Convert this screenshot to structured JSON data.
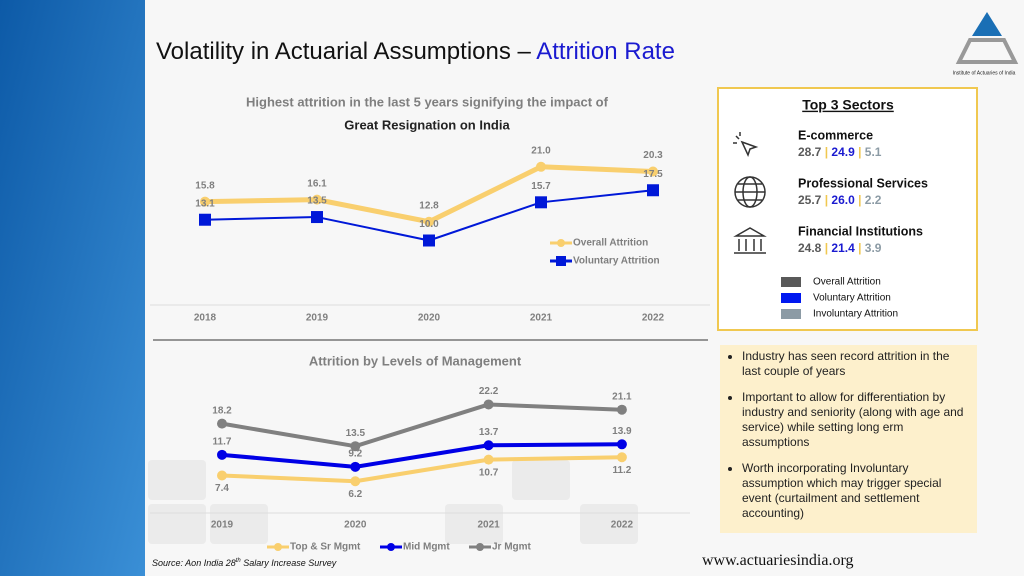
{
  "title": {
    "main": "Volatility in Actuarial Assumptions – ",
    "highlight": "Attrition Rate"
  },
  "logo_text": "Institute of Actuaries of India",
  "chart_data": [
    {
      "type": "line",
      "title": "Highest attrition in the last 5 years signifying the impact of",
      "subtitle": "Great Resignation on India",
      "categories": [
        "2018",
        "2019",
        "2020",
        "2021",
        "2022"
      ],
      "ylim": [
        5,
        25
      ],
      "series": [
        {
          "name": "Overall Attrition",
          "color": "#f9cf6e",
          "values": [
            15.8,
            16.1,
            12.8,
            21.0,
            20.3
          ],
          "value_labels": [
            "15.8",
            "16.1",
            "12.8",
            "21.0",
            "20.3"
          ]
        },
        {
          "name": "Voluntary Attrition",
          "color": "#0018d8",
          "values": [
            13.1,
            13.5,
            10.0,
            15.7,
            17.5
          ],
          "value_labels": [
            "13.1",
            "13.5",
            "10.0",
            "15.7",
            "17.5"
          ]
        }
      ]
    },
    {
      "type": "line",
      "title": "Attrition by Levels of Management",
      "categories": [
        "2019",
        "2020",
        "2021",
        "2022"
      ],
      "ylim": [
        0,
        25
      ],
      "series": [
        {
          "name": "Top & Sr Mgmt",
          "color": "#f9cf6e",
          "values": [
            7.4,
            6.2,
            10.7,
            11.2
          ]
        },
        {
          "name": "Mid Mgmt",
          "color": "#0000e6",
          "values": [
            11.7,
            9.2,
            13.7,
            13.9
          ]
        },
        {
          "name": "Jr Mgmt",
          "color": "#808080",
          "values": [
            18.2,
            13.5,
            22.2,
            21.1
          ]
        }
      ]
    }
  ],
  "sectors": {
    "title": "Top 3 Sectors",
    "items": [
      {
        "name": "E-commerce",
        "overall": "28.7",
        "voluntary": "24.9",
        "involuntary": "5.1"
      },
      {
        "name": "Professional Services",
        "overall": "25.7",
        "voluntary": "26.0",
        "involuntary": "2.2"
      },
      {
        "name": "Financial Institutions",
        "overall": "24.8",
        "voluntary": "21.4",
        "involuntary": "3.9"
      }
    ],
    "legend": [
      {
        "name": "Overall Attrition",
        "color": "#595959"
      },
      {
        "name": "Voluntary Attrition",
        "color": "#0018f0"
      },
      {
        "name": "Involuntary Attrition",
        "color": "#8c9ba5"
      }
    ]
  },
  "bullets": [
    "Industry has seen record attrition in the last couple of years",
    "Important to allow for differentiation by industry and seniority (along with age and service) while setting long erm assumptions",
    "Worth incorporating Involuntary assumption which may trigger special event (curtailment and settlement accounting)"
  ],
  "source": {
    "text": "Source: Aon India 28",
    "sup": "th",
    "rest": " Salary Increase Survey"
  },
  "website": "www.actuariesindia.org"
}
